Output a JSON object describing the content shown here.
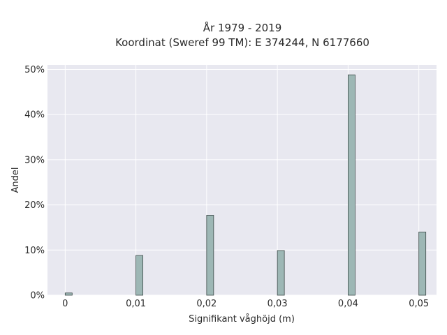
{
  "chart_data": {
    "type": "bar",
    "title": "År 1979 - 2019",
    "subtitle": "Koordinat (Sweref 99 TM): E 374244, N 6177660",
    "xlabel": "Signifikant våghöjd (m)",
    "ylabel": "Andel",
    "categories": [
      0,
      0.01,
      0.02,
      0.03,
      0.04,
      0.05
    ],
    "values": [
      0.5,
      8.8,
      17.7,
      9.9,
      48.8,
      14.0
    ],
    "xlim": [
      -0.0025,
      0.0525
    ],
    "ylim": [
      0,
      51
    ],
    "xticks": [
      {
        "value": 0,
        "label": "0"
      },
      {
        "value": 0.01,
        "label": "0,01"
      },
      {
        "value": 0.02,
        "label": "0,02"
      },
      {
        "value": 0.03,
        "label": "0,03"
      },
      {
        "value": 0.04,
        "label": "0,04"
      },
      {
        "value": 0.05,
        "label": "0,05"
      }
    ],
    "yticks": [
      {
        "value": 0,
        "label": "0%"
      },
      {
        "value": 10,
        "label": "10%"
      },
      {
        "value": 20,
        "label": "20%"
      },
      {
        "value": 30,
        "label": "30%"
      },
      {
        "value": 40,
        "label": "40%"
      },
      {
        "value": 50,
        "label": "50%"
      }
    ],
    "grid": true,
    "bar_color": "#9db7b5",
    "bar_edge_color": "#3d4a49",
    "background_color": "#e8e8f0"
  }
}
